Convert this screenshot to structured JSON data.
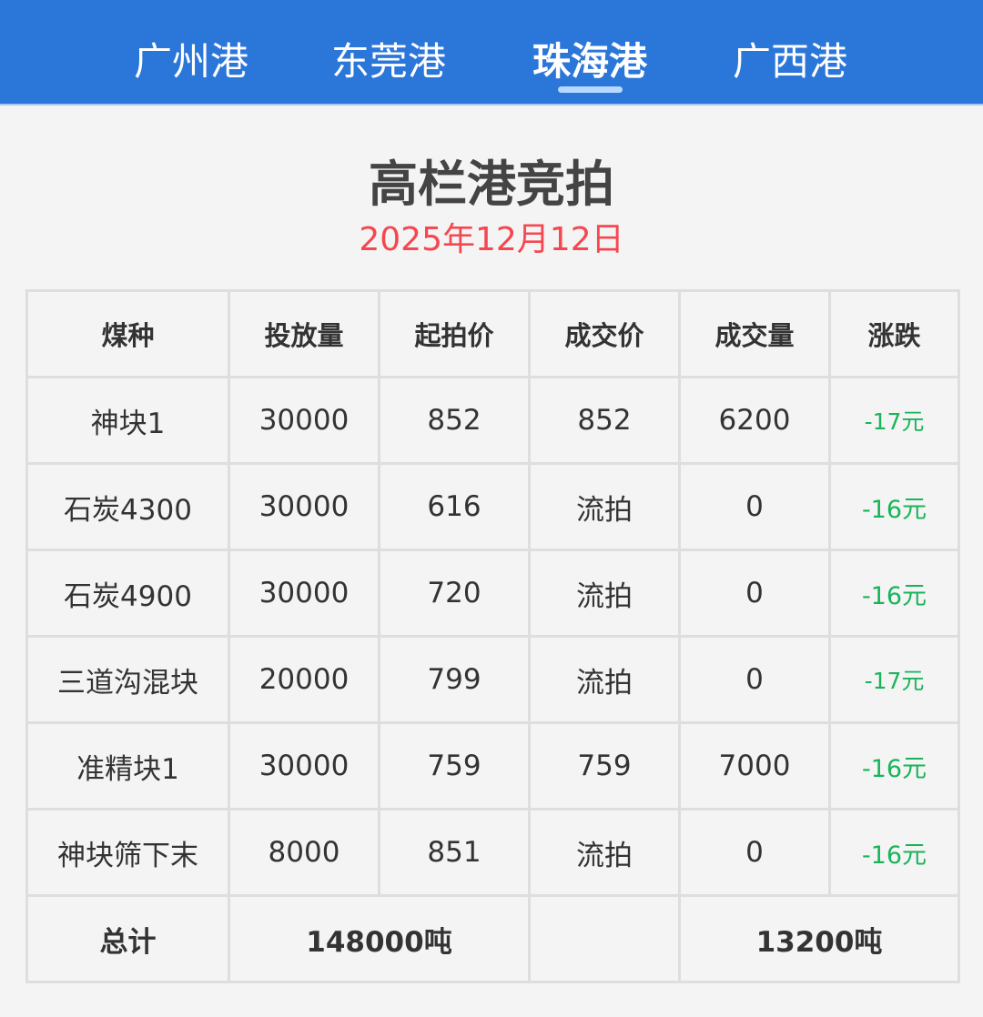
{
  "tabs": [
    {
      "label": "广州港"
    },
    {
      "label": "东莞港"
    },
    {
      "label": "珠海港"
    },
    {
      "label": "广西港"
    }
  ],
  "active_tab": "珠海港",
  "title": "高栏港竞拍",
  "date": "2025年12月12日",
  "colors": {
    "header_bg": "#2b76d9",
    "date": "#f5474f",
    "change": "#19b45a"
  },
  "table": {
    "headers": [
      "煤种",
      "投放量",
      "起拍价",
      "成交价",
      "成交量",
      "涨跌"
    ],
    "rows": [
      [
        "神块1",
        "30000",
        "852",
        "852",
        "6200",
        "-17元"
      ],
      [
        "石炭4300",
        "30000",
        "616",
        "流拍",
        "0",
        "-16元"
      ],
      [
        "石炭4900",
        "30000",
        "720",
        "流拍",
        "0",
        "-16元"
      ],
      [
        "三道沟混块",
        "20000",
        "799",
        "流拍",
        "0",
        "-17元"
      ],
      [
        "准精块1",
        "30000",
        "759",
        "759",
        "7000",
        "-16元"
      ],
      [
        "神块筛下末",
        "8000",
        "851",
        "流拍",
        "0",
        "-16元"
      ]
    ],
    "total": {
      "label": "总计",
      "supply": "148000吨",
      "volume": "13200吨"
    }
  }
}
